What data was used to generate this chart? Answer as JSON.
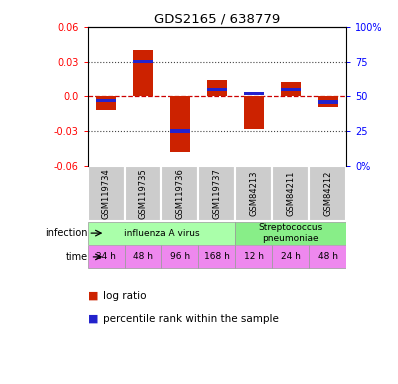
{
  "title": "GDS2165 / 638779",
  "samples": [
    "GSM119734",
    "GSM119735",
    "GSM119736",
    "GSM119737",
    "GSM84213",
    "GSM84211",
    "GSM84212"
  ],
  "log_ratios": [
    -0.012,
    0.04,
    -0.048,
    0.014,
    -0.028,
    0.012,
    -0.009
  ],
  "percentile_ranks": [
    0.47,
    0.75,
    0.25,
    0.55,
    0.52,
    0.55,
    0.46
  ],
  "ylim": [
    -0.06,
    0.06
  ],
  "yticks": [
    -0.06,
    -0.03,
    0.0,
    0.03,
    0.06
  ],
  "y2labels": [
    "0%",
    "25",
    "50",
    "75",
    "100%"
  ],
  "infection_groups": [
    {
      "label": "influenza A virus",
      "start": 0,
      "end": 4,
      "color": "#aaffaa"
    },
    {
      "label": "Streptococcus\npneumoniae",
      "start": 4,
      "end": 7,
      "color": "#88ee88"
    }
  ],
  "time_labels": [
    "24 h",
    "48 h",
    "96 h",
    "168 h",
    "12 h",
    "24 h",
    "48 h"
  ],
  "time_color": "#ee88ee",
  "bar_color": "#cc2200",
  "percentile_color": "#2222cc",
  "bg_color": "#ffffff",
  "zero_line_color": "#cc0000",
  "dotted_line_color": "#444444",
  "sample_bg": "#cccccc",
  "bar_width": 0.55,
  "percentile_bar_height": 0.003
}
